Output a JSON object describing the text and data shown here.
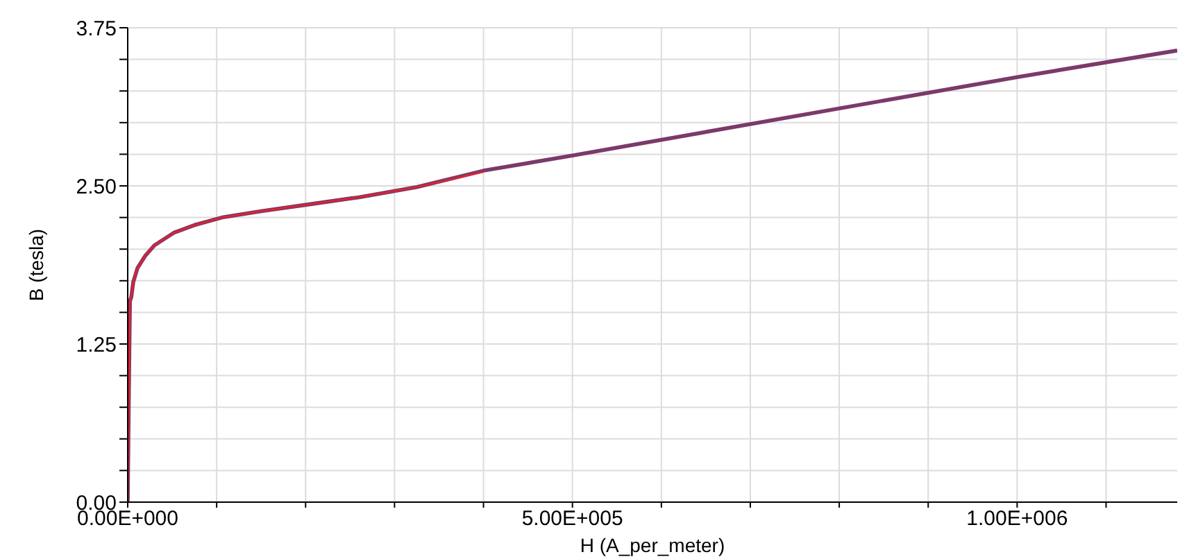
{
  "chart_data": {
    "type": "line",
    "xlabel": "H (A_per_meter)",
    "ylabel": "B (tesla)",
    "series": [
      {
        "color": "#e8202a",
        "x": [
          0,
          1500,
          2500,
          4000,
          6250,
          11000,
          20000,
          30000,
          52000,
          75000,
          106000,
          150000,
          200000,
          260000,
          325000,
          400000
        ],
        "values": [
          0,
          1.0,
          1.59,
          1.62,
          1.74,
          1.85,
          1.95,
          2.03,
          2.13,
          2.19,
          2.25,
          2.3,
          2.35,
          2.41,
          2.49,
          2.61
        ]
      },
      {
        "color": "#7b3a6a",
        "x": [
          0,
          1500,
          2500,
          4000,
          6250,
          11000,
          20000,
          30000,
          52000,
          75000,
          106000,
          150000,
          200000,
          260000,
          325000,
          400000,
          500000,
          1000000,
          1180000
        ],
        "values": [
          0,
          1.0,
          1.59,
          1.62,
          1.74,
          1.85,
          1.95,
          2.03,
          2.13,
          2.19,
          2.25,
          2.3,
          2.35,
          2.41,
          2.49,
          2.62,
          2.74,
          3.36,
          3.57
        ]
      }
    ],
    "xlim": [
      0,
      1180000
    ],
    "xticks": [
      {
        "value": 0,
        "label": "0.00E+000"
      },
      {
        "value": 100000,
        "label": null
      },
      {
        "value": 200000,
        "label": null
      },
      {
        "value": 300000,
        "label": null
      },
      {
        "value": 400000,
        "label": null
      },
      {
        "value": 500000,
        "label": "5.00E+005"
      },
      {
        "value": 600000,
        "label": null
      },
      {
        "value": 700000,
        "label": null
      },
      {
        "value": 800000,
        "label": null
      },
      {
        "value": 900000,
        "label": null
      },
      {
        "value": 1000000,
        "label": "1.00E+006"
      },
      {
        "value": 1100000,
        "label": null
      }
    ],
    "ylim": [
      0,
      3.75
    ],
    "yticks": [
      {
        "value": 0,
        "label": "0.00"
      },
      {
        "value": 0.25,
        "label": null
      },
      {
        "value": 0.5,
        "label": null
      },
      {
        "value": 0.75,
        "label": null
      },
      {
        "value": 1,
        "label": null
      },
      {
        "value": 1.25,
        "label": "1.25"
      },
      {
        "value": 1.5,
        "label": null
      },
      {
        "value": 1.75,
        "label": null
      },
      {
        "value": 2,
        "label": null
      },
      {
        "value": 2.25,
        "label": null
      },
      {
        "value": 2.5,
        "label": "2.50"
      },
      {
        "value": 2.75,
        "label": null
      },
      {
        "value": 3,
        "label": null
      },
      {
        "value": 3.25,
        "label": null
      },
      {
        "value": 3.5,
        "label": null
      },
      {
        "value": 3.75,
        "label": "3.75"
      }
    ],
    "grid": true,
    "legend": false,
    "marker": "none",
    "line_style": "solid"
  }
}
